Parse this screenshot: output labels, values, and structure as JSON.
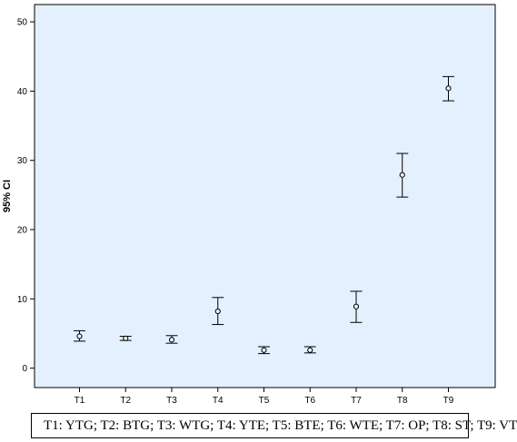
{
  "chart_data": {
    "type": "errorbar",
    "categories": [
      "T1",
      "T2",
      "T3",
      "T4",
      "T5",
      "T6",
      "T7",
      "T8",
      "T9"
    ],
    "series": [
      {
        "mean": [
          4.6,
          4.3,
          4.1,
          8.2,
          2.6,
          2.6,
          8.9,
          27.9,
          40.4
        ],
        "lower": [
          3.9,
          4.0,
          3.6,
          6.3,
          2.1,
          2.2,
          6.6,
          24.7,
          38.6
        ],
        "upper": [
          5.4,
          4.6,
          4.7,
          10.2,
          3.1,
          3.1,
          11.1,
          31.0,
          42.1
        ]
      }
    ],
    "ylabel": "95% CI",
    "xlabel": "",
    "ylim": [
      -2.8,
      52.5
    ],
    "yticks": [
      0,
      10,
      20,
      30,
      40,
      50
    ],
    "grid": false,
    "plot_background": "#e5f0ff",
    "caption": "T1: YTG; T2: BTG; T3: WTG; T4: YTE; T5: BTE; T6: WTE; T7: OP; T8: ST; T9: VT"
  }
}
